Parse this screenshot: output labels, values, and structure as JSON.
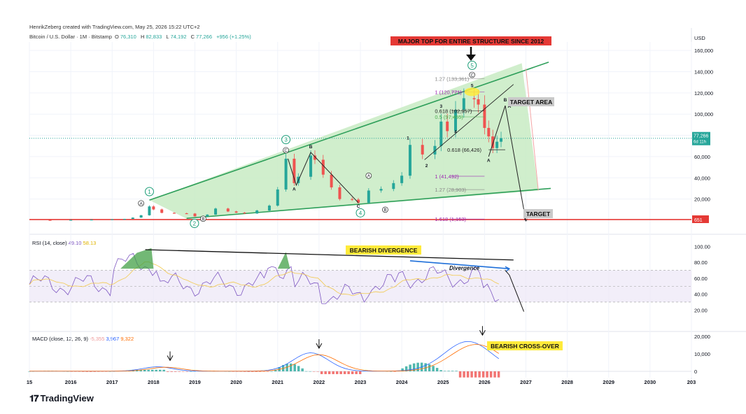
{
  "header": {
    "credit": "HenrikZeberg created with TradingView.com, May 25, 2026 15:22 UTC+2",
    "symbol": "Bitcoin / U.S. Dollar · 1M · Bitstamp",
    "o_label": "O",
    "o_value": "76,310",
    "h_label": "H",
    "h_value": "82,833",
    "l_label": "L",
    "l_value": "74,192",
    "c_label": "C",
    "c_value": "77,266",
    "change": "+956 (+1.25%)"
  },
  "currency": "USD",
  "price_badge": {
    "value": "77,266",
    "sub": "6d 11h"
  },
  "red_line_badge": "651",
  "colors": {
    "bull": "#26a69a",
    "bear": "#ef5350",
    "wedge_fill": "#c8ebc3",
    "wedge_line": "#2e9f5a",
    "rsi_line": "#7e57c2",
    "rsi_ma": "#f2c94c",
    "macd_line": "#2962ff",
    "signal_line": "#ff6d00",
    "accent_red": "#e53935",
    "highlight": "#ffeb3b"
  },
  "annotations": {
    "major_top": "MAJOR TOP FOR ENTIRE STRUCTURE SINCE 2012",
    "target_area": "TARGET AREA",
    "target": "TARGET",
    "bearish_divergence": "BEARISH DIVERGENCE",
    "divergence": "Divergence",
    "bearish_crossover": "BEARISH CROSS-OVER"
  },
  "fib_levels": [
    {
      "label": "1.27 (133,361)",
      "price": 133361
    },
    {
      "label": "1 (120,771)",
      "price": 120771
    },
    {
      "label": "0.618 (102,957)",
      "price": 102957
    },
    {
      "label": "0.5 (97,455)",
      "price": 97455
    },
    {
      "label": "0.618 (66,426)",
      "price": 66426
    },
    {
      "label": "1 (41,492)",
      "price": 41492
    },
    {
      "label": "1.27 (28,903)",
      "price": 28903
    },
    {
      "label": "1.618 (1,153)",
      "price": 1153
    }
  ],
  "wave_labels": {
    "circled_numbers": [
      "1",
      "2",
      "3",
      "4",
      "5"
    ],
    "circled_letters": [
      "A",
      "B",
      "A",
      "B",
      "C",
      "C"
    ],
    "letters": [
      "B",
      "A",
      "C",
      "A",
      "B",
      "C",
      "A"
    ],
    "small_numbers": [
      "1",
      "2",
      "3",
      "4",
      "5"
    ]
  },
  "rsi": {
    "label": "RSI (14, close)",
    "value": "49.10",
    "ma_value": "58.13",
    "ticks": [
      "100.00",
      "80.00",
      "60.00",
      "40.00",
      "20.00"
    ]
  },
  "macd": {
    "label": "MACD (close, 12, 26, 9)",
    "hist_value": "-5,355",
    "macd_value": "3,967",
    "signal_value": "9,322",
    "ticks": [
      "20,000",
      "10,000",
      "0"
    ]
  },
  "chart_data": {
    "type": "line",
    "title": "",
    "xlabel": "",
    "ylabel": "USD",
    "x_ticks": [
      "15",
      "2016",
      "2017",
      "2018",
      "2019",
      "2020",
      "2021",
      "2022",
      "2023",
      "2024",
      "2025",
      "2026",
      "2027",
      "2028",
      "2029",
      "2030",
      "203"
    ],
    "y_ticks": [
      "160,000",
      "140,000",
      "120,000",
      "100,000",
      "80,000",
      "60,000",
      "40,000",
      "20,000"
    ],
    "ylim": [
      -2000,
      168000
    ],
    "xlim": [
      2015.0,
      2031.0
    ],
    "grid": true,
    "series": [
      {
        "values": [
          [
            2015.0,
            300
          ],
          [
            2015.5,
            270
          ],
          [
            2016.0,
            420
          ],
          [
            2016.5,
            660
          ],
          [
            2017.0,
            1000
          ],
          [
            2017.3,
            1300
          ],
          [
            2017.5,
            2500
          ],
          [
            2017.7,
            4700
          ],
          [
            2017.9,
            13000
          ],
          [
            2018.0,
            10200
          ],
          [
            2018.2,
            7000
          ],
          [
            2018.5,
            6600
          ],
          [
            2018.8,
            6300
          ],
          [
            2019.0,
            3700
          ],
          [
            2019.3,
            5300
          ],
          [
            2019.5,
            11000
          ],
          [
            2019.8,
            8300
          ],
          [
            2020.0,
            7200
          ],
          [
            2020.2,
            6400
          ],
          [
            2020.5,
            9200
          ],
          [
            2020.8,
            13800
          ],
          [
            2021.0,
            29000
          ],
          [
            2021.2,
            58000
          ],
          [
            2021.4,
            35000
          ],
          [
            2021.5,
            41000
          ],
          [
            2021.8,
            61000
          ],
          [
            2021.9,
            57000
          ],
          [
            2022.1,
            43000
          ],
          [
            2022.3,
            31000
          ],
          [
            2022.5,
            20000
          ],
          [
            2022.8,
            19500
          ],
          [
            2022.95,
            16500
          ],
          [
            2023.2,
            28000
          ],
          [
            2023.5,
            29500
          ],
          [
            2023.8,
            35000
          ],
          [
            2024.0,
            42000
          ],
          [
            2024.2,
            71000
          ],
          [
            2024.5,
            62000
          ],
          [
            2024.8,
            70000
          ],
          [
            2024.95,
            93000
          ],
          [
            2025.1,
            84000
          ],
          [
            2025.3,
            104000
          ],
          [
            2025.5,
            115000
          ],
          [
            2025.75,
            114000
          ],
          [
            2025.85,
            109000
          ],
          [
            2026.0,
            87000
          ],
          [
            2026.1,
            79000
          ],
          [
            2026.2,
            68000
          ],
          [
            2026.3,
            74000
          ],
          [
            2026.4,
            77266
          ]
        ]
      }
    ]
  }
}
